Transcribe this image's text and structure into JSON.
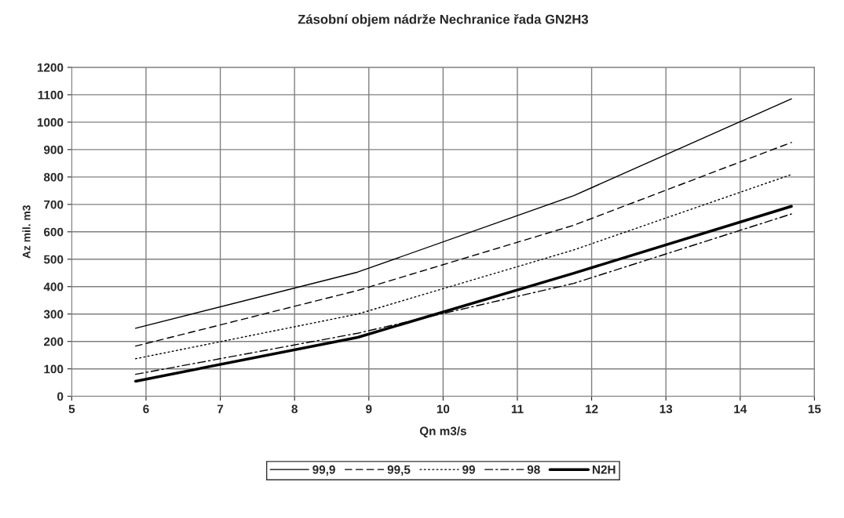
{
  "chart_data": {
    "type": "line",
    "title": "Zásobní objem nádrže Nechranice řada GN2H3",
    "xlabel": "Qn m3/s",
    "ylabel": "Az mil. m3",
    "x": [
      5.86,
      8.85,
      11.76,
      14.69
    ],
    "series": [
      {
        "name": "99,9",
        "color": "#000000",
        "line_style": "solid",
        "values": [
          248,
          453,
          732,
          1085
        ]
      },
      {
        "name": "99,5",
        "color": "#000000",
        "line_style": "dashed",
        "values": [
          183,
          386,
          624,
          926
        ]
      },
      {
        "name": "99",
        "color": "#000000",
        "line_style": "dotted",
        "values": [
          137,
          300,
          534,
          809
        ]
      },
      {
        "name": "98",
        "color": "#000000",
        "line_style": "dashdot",
        "values": [
          80,
          230,
          412,
          665
        ]
      },
      {
        "name": "N2H",
        "color": "#000000",
        "line_style": "solid",
        "values": [
          55,
          215,
          449,
          693
        ]
      }
    ],
    "xlim": [
      5,
      15
    ],
    "xticks": [
      5,
      6,
      7,
      8,
      9,
      10,
      11,
      12,
      13,
      14,
      15
    ],
    "ylim": [
      0,
      1200
    ],
    "yticks": [
      0,
      100,
      200,
      300,
      400,
      500,
      600,
      700,
      800,
      900,
      1000,
      1100,
      1200
    ],
    "grid": true,
    "legend": "bottom",
    "marker": "none"
  }
}
